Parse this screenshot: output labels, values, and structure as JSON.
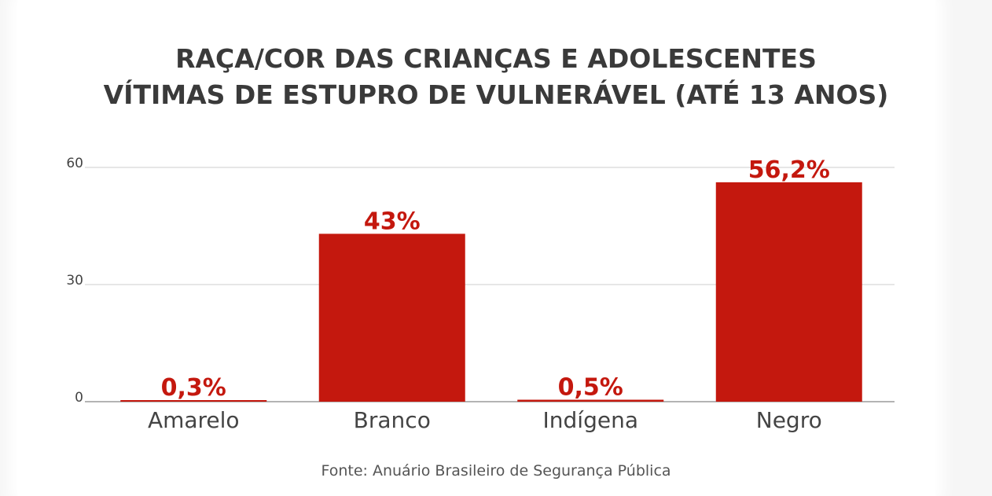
{
  "title": {
    "line1": "RAÇA/COR DAS CRIANÇAS E ADOLESCENTES",
    "line2": "VÍTIMAS DE ESTUPRO DE VULNERÁVEL (ATÉ 13 ANOS)"
  },
  "source": "Fonte: Anuário Brasileiro de Segurança Pública",
  "colors": {
    "bar": "#c4180e",
    "label": "#c4180e",
    "axis_text": "#444444",
    "grid": "#cccccc"
  },
  "chart_data": {
    "type": "bar",
    "categories": [
      "Amarelo",
      "Branco",
      "Indígena",
      "Negro"
    ],
    "values": [
      0.3,
      43,
      0.5,
      56.2
    ],
    "data_labels": [
      "0,3%",
      "43%",
      "0,5%",
      "56,2%"
    ],
    "ylim": [
      0,
      60
    ],
    "yticks": [
      "0",
      "30",
      "60"
    ],
    "ytick_values": [
      0,
      30,
      60
    ],
    "grid": true,
    "xlabel": "",
    "ylabel": ""
  }
}
